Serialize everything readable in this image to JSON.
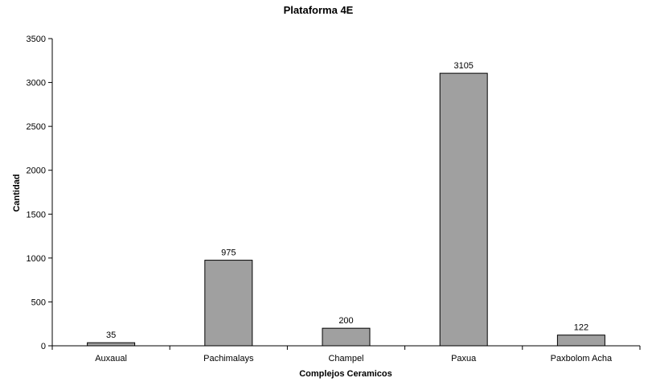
{
  "chart_data": {
    "type": "bar",
    "title": "Plataforma 4E",
    "xlabel": "Complejos Ceramicos",
    "ylabel": "Cantidad",
    "categories": [
      "Auxaual",
      "Pachimalays",
      "Champel",
      "Paxua",
      "Paxbolom Acha"
    ],
    "values": [
      35,
      975,
      200,
      3105,
      122
    ],
    "data_labels": [
      "35",
      "975",
      "200",
      "3105",
      "122"
    ],
    "ylim": [
      0,
      3500
    ],
    "yticks": [
      0,
      500,
      1000,
      1500,
      2000,
      2500,
      3000,
      3500
    ],
    "ytick_labels": [
      "0",
      "500",
      "1000",
      "1500",
      "2000",
      "2500",
      "3000",
      "3500"
    ],
    "grid": false,
    "legend": "none",
    "bar_color": "#a0a0a0",
    "bar_edge_color": "#000000"
  }
}
